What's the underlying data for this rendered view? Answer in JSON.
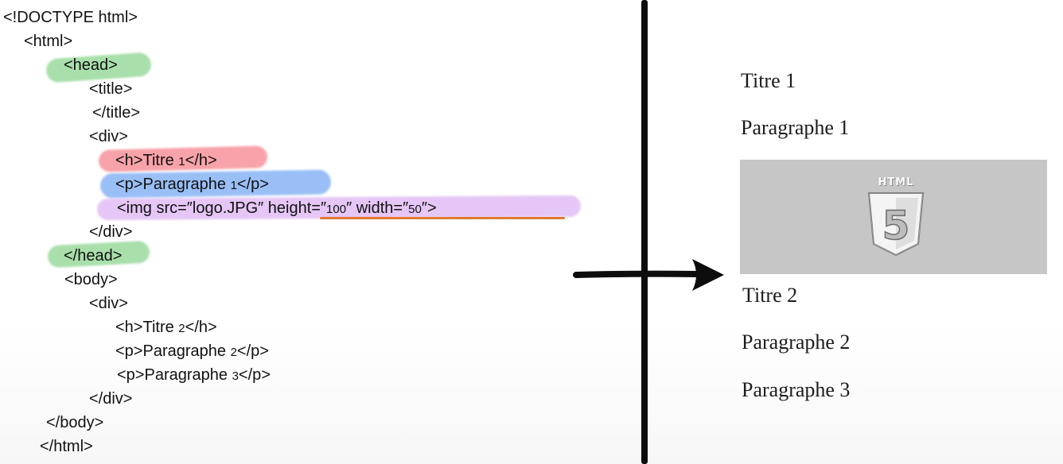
{
  "code": {
    "lines": [
      "<!DOCTYPE html>",
      "<html>",
      "<head>",
      "<title>",
      "</title>",
      "<div>",
      "<h>Titre ",
      "1",
      "</h>",
      "<p>Paragraphe ",
      "1",
      "</p>",
      "<img src=″logo.JPG″ height=″",
      "100",
      "″ width=″",
      "50",
      "″>",
      "</div>",
      "</head>",
      "<body>",
      "<div>",
      "<h>Titre ",
      "2",
      "</h>",
      "<p>Paragraphe ",
      "2",
      "</p>",
      "<p>Paragraphe ",
      "3",
      "</p>",
      "</div>",
      "</body>",
      "</html>"
    ],
    "highlight_colors": {
      "head": "#74cc78",
      "title_tag": "#f4747c",
      "paragraph_tag": "#68a0f2",
      "img_tag": "#d49cf0",
      "underline": "#e07a32"
    }
  },
  "divider": {
    "arrow_icon": "right-arrow-icon"
  },
  "render": {
    "title_1": "Titre 1",
    "paragraph_1": "Paragraphe 1",
    "logo_label": "HTML",
    "logo_digit": "5",
    "logo_icon": "html5-logo-icon",
    "title_2": "Titre 2",
    "paragraph_2": "Paragraphe 2",
    "paragraph_3": "Paragraphe 3",
    "image_background": "#c6c6c6"
  }
}
